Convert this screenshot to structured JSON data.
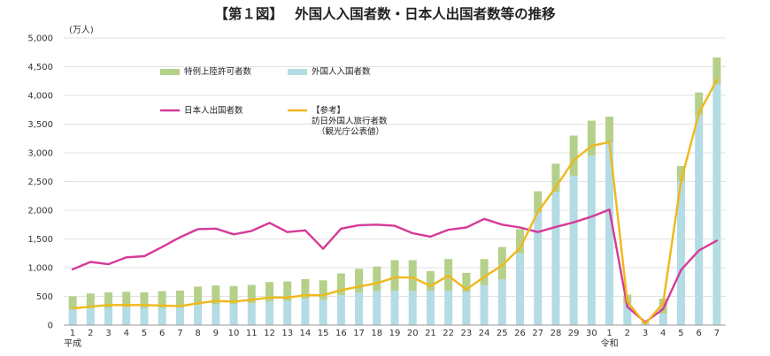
{
  "chart_data": {
    "type": "bar",
    "title": "【第１図】　 外国人入国者数・日本人出国者数等の推移",
    "unit_label": "(万人)",
    "ylim": [
      0,
      5000
    ],
    "yticks": [
      "0",
      "500",
      "1,000",
      "1,500",
      "2,000",
      "2,500",
      "3,000",
      "3,500",
      "4,000",
      "4,500",
      "5,000"
    ],
    "categories": [
      "1",
      "2",
      "3",
      "4",
      "5",
      "6",
      "7",
      "8",
      "9",
      "10",
      "11",
      "12",
      "13",
      "14",
      "15",
      "16",
      "17",
      "18",
      "19",
      "20",
      "21",
      "22",
      "23",
      "24",
      "25",
      "26",
      "27",
      "28",
      "29",
      "30",
      "1",
      "2",
      "3",
      "4",
      "5",
      "6",
      "7"
    ],
    "era_labels": [
      {
        "text": "平成",
        "index": 0
      },
      {
        "text": "令和",
        "index": 30
      }
    ],
    "grid": true,
    "series": [
      {
        "name": "外国人入国者数",
        "kind": "stacked-bar-base",
        "color": "#b3dce4",
        "values": [
          270,
          290,
          300,
          310,
          300,
          300,
          310,
          350,
          360,
          370,
          380,
          410,
          420,
          460,
          440,
          520,
          570,
          590,
          600,
          600,
          600,
          600,
          580,
          700,
          800,
          1250,
          1950,
          2320,
          2600,
          2950,
          3180,
          380,
          30,
          200,
          2500,
          3650,
          4200
        ]
      },
      {
        "name": "特例上陸許可者数",
        "kind": "stacked-bar-top",
        "color": "#b5d08a",
        "values": [
          230,
          260,
          270,
          270,
          270,
          290,
          290,
          320,
          330,
          310,
          320,
          340,
          340,
          340,
          340,
          380,
          410,
          430,
          530,
          530,
          340,
          550,
          330,
          450,
          560,
          420,
          380,
          490,
          700,
          610,
          450,
          150,
          20,
          260,
          270,
          400,
          460
        ]
      },
      {
        "name": "日本人出国者数",
        "kind": "line",
        "color": "#d63a97",
        "values": [
          970,
          1100,
          1060,
          1180,
          1200,
          1360,
          1530,
          1670,
          1680,
          1580,
          1640,
          1780,
          1620,
          1650,
          1330,
          1680,
          1740,
          1750,
          1730,
          1600,
          1540,
          1660,
          1700,
          1850,
          1750,
          1700,
          1620,
          1710,
          1790,
          1890,
          2010,
          320,
          50,
          280,
          960,
          1300,
          1470
        ]
      },
      {
        "name": "【参考】訪日外国人旅行者数（観光庁公表値）",
        "kind": "line",
        "color": "#efb81b",
        "values": [
          290,
          320,
          350,
          350,
          350,
          340,
          330,
          380,
          420,
          410,
          440,
          480,
          480,
          520,
          520,
          610,
          670,
          730,
          830,
          830,
          680,
          860,
          620,
          840,
          1040,
          1340,
          1970,
          2400,
          2870,
          3120,
          3190,
          410,
          20,
          380,
          2510,
          3690,
          4270
        ]
      }
    ],
    "legend": [
      {
        "text": "特例上陸許可者数",
        "swatch": "bar",
        "color": "#b5d08a"
      },
      {
        "text": "外国人入国者数",
        "swatch": "bar",
        "color": "#b3dce4"
      },
      {
        "text": "日本人出国者数",
        "swatch": "line",
        "color": "#d63a97"
      },
      {
        "text": "【参考】",
        "swatch": "line",
        "color": "#efb81b",
        "extra_lines": [
          "訪日外国人旅行者数",
          "（観光庁公表値）"
        ]
      }
    ],
    "legend_placement": "top-left inside plot"
  }
}
